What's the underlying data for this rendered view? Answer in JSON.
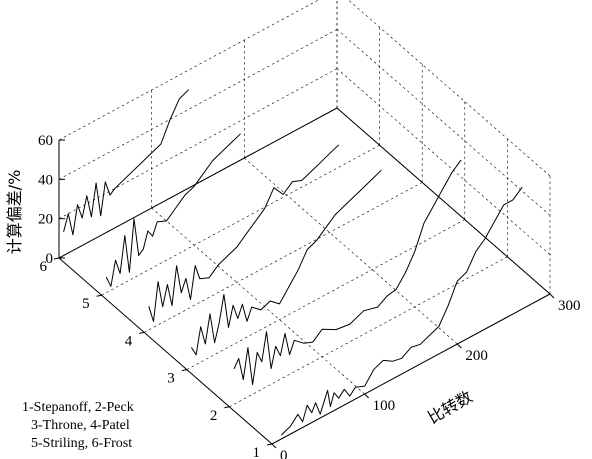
{
  "chart_data": {
    "type": "line",
    "projection": "3d-waterfall",
    "title": "",
    "xlabel": "比转数",
    "ylabel": "",
    "zlabel": "计算偏差/%",
    "xlim": [
      0,
      300
    ],
    "ylim": [
      1,
      6
    ],
    "zlim": [
      0,
      60
    ],
    "x_ticks": [
      "0",
      "100",
      "200",
      "300"
    ],
    "y_ticks": [
      "1",
      "2",
      "3",
      "4",
      "5",
      "6"
    ],
    "z_ticks": [
      "0",
      "20",
      "40",
      "60"
    ],
    "grid": true,
    "legend_text": [
      "1-Stepanoff, 2-Peck",
      "3-Throne, 4-Patel",
      "5-Striling, 6-Frost"
    ],
    "series": [
      {
        "name": "Stepanoff",
        "y": 1,
        "x": [
          10,
          20,
          28,
          33,
          38,
          43,
          47,
          52,
          56,
          60,
          63,
          67,
          72,
          78,
          84,
          90,
          100,
          110,
          120,
          130,
          140,
          150,
          160,
          170,
          180,
          190,
          200,
          210,
          220,
          230,
          240,
          250,
          260,
          270
        ],
        "z": [
          2,
          4,
          8,
          3,
          10,
          5,
          9,
          2,
          7,
          12,
          3,
          9,
          5,
          8,
          3,
          6,
          4,
          10,
          12,
          9,
          8,
          11,
          10,
          12,
          14,
          22,
          32,
          34,
          42,
          46,
          52,
          58,
          58,
          62
        ]
      },
      {
        "name": "Peck",
        "y": 2,
        "x": [
          5,
          10,
          15,
          20,
          25,
          30,
          35,
          40,
          45,
          50,
          55,
          60,
          65,
          70,
          80,
          90,
          100,
          115,
          130,
          145,
          160,
          170,
          180,
          190,
          200,
          210,
          220,
          230,
          240,
          250
        ],
        "z": [
          18,
          22,
          10,
          25,
          5,
          20,
          14,
          28,
          8,
          18,
          12,
          22,
          10,
          16,
          12,
          10,
          14,
          10,
          9,
          12,
          10,
          13,
          14,
          20,
          28,
          40,
          46,
          52,
          58,
          62
        ]
      },
      {
        "name": "Throne",
        "y": 3,
        "x": [
          5,
          10,
          15,
          20,
          25,
          30,
          35,
          40,
          45,
          50,
          55,
          60,
          65,
          70,
          80,
          90,
          100,
          110,
          120,
          130,
          140,
          150,
          160,
          170,
          180,
          190,
          200,
          210
        ],
        "z": [
          10,
          5,
          18,
          8,
          22,
          6,
          15,
          28,
          10,
          20,
          12,
          18,
          8,
          14,
          10,
          12,
          8,
          14,
          20,
          28,
          30,
          34,
          38,
          40,
          42,
          44,
          46,
          48
        ]
      },
      {
        "name": "Patel",
        "y": 4,
        "x": [
          5,
          10,
          15,
          20,
          25,
          30,
          35,
          40,
          45,
          50,
          55,
          60,
          70,
          80,
          90,
          100,
          110,
          120,
          130,
          140,
          150,
          160,
          170,
          180,
          190,
          200,
          210
        ],
        "z": [
          12,
          3,
          22,
          8,
          18,
          6,
          25,
          10,
          16,
          4,
          20,
          12,
          10,
          14,
          16,
          18,
          22,
          26,
          30,
          38,
          32,
          36,
          34,
          36,
          38,
          40,
          42
        ]
      },
      {
        "name": "Striling",
        "y": 5,
        "x": [
          5,
          10,
          15,
          20,
          25,
          30,
          35,
          40,
          45,
          50,
          55,
          60,
          70,
          80,
          90,
          100,
          110,
          120,
          130,
          140,
          150
        ],
        "z": [
          8,
          2,
          14,
          6,
          24,
          4,
          30,
          10,
          12,
          20,
          16,
          22,
          20,
          24,
          28,
          30,
          34,
          38,
          40,
          42,
          44
        ]
      },
      {
        "name": "Frost",
        "y": 6,
        "x": [
          5,
          10,
          15,
          20,
          25,
          30,
          35,
          40,
          45,
          50,
          55,
          60,
          70,
          80,
          90,
          100,
          110,
          120,
          130,
          140
        ],
        "z": [
          12,
          20,
          8,
          22,
          14,
          24,
          12,
          28,
          10,
          26,
          18,
          20,
          22,
          24,
          26,
          28,
          30,
          40,
          48,
          50
        ]
      }
    ]
  }
}
